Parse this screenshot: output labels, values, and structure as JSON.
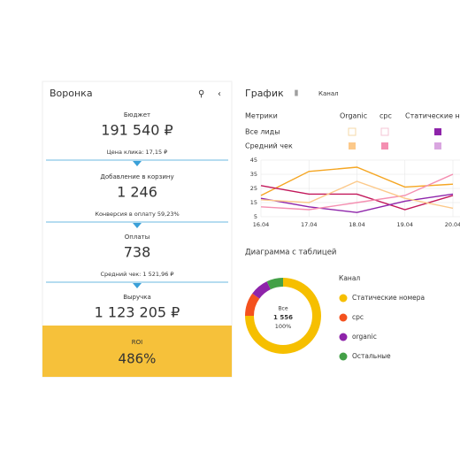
{
  "funnel": {
    "title": "Воронка",
    "stages": [
      {
        "label": "Бюджет",
        "value": "191 540 ₽",
        "note": "Цена клика: 17,15 ₽"
      },
      {
        "label": "Добавление в корзину",
        "value": "1 246",
        "note": "Конверсия в оплату 59,23%"
      },
      {
        "label": "Оплаты",
        "value": "738",
        "note": "Средний чек: 1 521,96 ₽"
      },
      {
        "label": "Выручка",
        "value": "1 123 205 ₽"
      }
    ],
    "roi": {
      "label": "ROI",
      "value": "486%"
    }
  },
  "graph": {
    "title": "График",
    "channel_button": "Канал",
    "metrics": {
      "header": "Метрики",
      "columns": [
        "Organic",
        "cpc",
        "Статические номера"
      ],
      "rows": [
        "Все лиды",
        "Средний чек"
      ]
    }
  },
  "chart_data": [
    {
      "type": "line",
      "categories": [
        "16.04",
        "17.04",
        "18.04",
        "19.04",
        "20.04"
      ],
      "ylim": [
        5,
        45
      ],
      "yticks": [
        5,
        15,
        25,
        35,
        45
      ],
      "grid": true,
      "series": [
        {
          "color": "#f5a623",
          "values": [
            20,
            37,
            40,
            26,
            28
          ]
        },
        {
          "color": "#c2185b",
          "values": [
            27,
            21,
            21,
            10,
            20
          ]
        },
        {
          "color": "#8e24aa",
          "values": [
            18,
            12,
            8,
            16,
            21
          ]
        },
        {
          "color": "#f48fb1",
          "values": [
            12,
            10,
            15,
            20,
            35
          ]
        },
        {
          "color": "#fcc98a",
          "values": [
            17,
            15,
            30,
            18,
            11
          ]
        }
      ]
    },
    {
      "type": "pie",
      "title": "Диаграмма с таблицей",
      "legend_title": "Канал",
      "center": {
        "label": "Все",
        "total": "1 556",
        "share": "100%"
      },
      "categories": [
        "Статические номера",
        "cpc",
        "organic",
        "Остальные"
      ],
      "values": [
        75,
        10,
        8,
        7
      ],
      "colors": [
        "#f6bf00",
        "#f4511e",
        "#8e24aa",
        "#43a047"
      ]
    }
  ]
}
